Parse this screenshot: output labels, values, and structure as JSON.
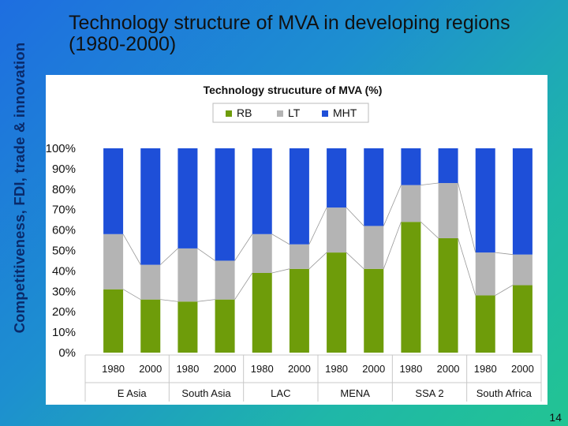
{
  "side_title": "Competitiveness, FDI, trade & innovation",
  "slide_title": "Technology structure of MVA in developing regions (1980-2000)",
  "page_number": "14",
  "chart_data": {
    "type": "bar",
    "stacked": true,
    "title": "Technology strucuture of MVA (%)",
    "legend_position": "top-center",
    "ylim": [
      0,
      100
    ],
    "yticks": [
      "0%",
      "10%",
      "20%",
      "30%",
      "40%",
      "50%",
      "60%",
      "70%",
      "80%",
      "90%",
      "100%"
    ],
    "regions": [
      "E Asia",
      "South Asia",
      "LAC",
      "MENA",
      "SSA 2",
      "South Africa"
    ],
    "categories": [
      "1980",
      "2000",
      "1980",
      "2000",
      "1980",
      "2000",
      "1980",
      "2000",
      "1980",
      "2000",
      "1980",
      "2000"
    ],
    "series": [
      {
        "name": "RB",
        "color": "#6e9c0a",
        "values": [
          31,
          26,
          25,
          26,
          39,
          41,
          49,
          41,
          64,
          56,
          28,
          33
        ]
      },
      {
        "name": "LT",
        "color": "#b4b4b4",
        "values": [
          27,
          17,
          26,
          19,
          19,
          12,
          22,
          21,
          18,
          27,
          21,
          15
        ]
      },
      {
        "name": "MHT",
        "color": "#1e4fd8",
        "values": [
          42,
          57,
          49,
          55,
          42,
          47,
          29,
          38,
          18,
          17,
          51,
          52
        ]
      }
    ]
  }
}
